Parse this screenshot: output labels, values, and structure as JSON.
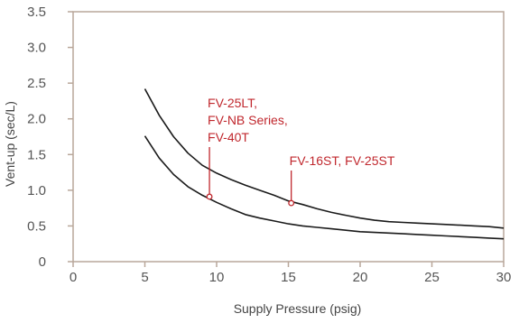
{
  "chart_data": {
    "type": "line",
    "xlabel": "Supply Pressure (psig)",
    "ylabel": "Vent-up (sec/L)",
    "xlim": [
      0,
      30
    ],
    "ylim": [
      0,
      3.5
    ],
    "xticks": [
      "0",
      "5",
      "10",
      "15",
      "20",
      "25",
      "30"
    ],
    "yticks": [
      "0",
      "0.5",
      "1.0",
      "1.5",
      "2.0",
      "2.5",
      "3.0",
      "3.5"
    ],
    "grid": false,
    "series": [
      {
        "x": [
          5,
          6,
          7,
          8,
          9,
          10,
          11,
          12,
          13,
          14,
          15,
          16,
          17,
          18,
          19,
          20,
          21,
          22,
          23,
          24,
          25,
          26,
          27,
          28,
          29,
          30
        ],
        "y": [
          2.42,
          2.05,
          1.75,
          1.52,
          1.35,
          1.24,
          1.15,
          1.07,
          1.0,
          0.93,
          0.85,
          0.8,
          0.74,
          0.69,
          0.65,
          0.61,
          0.58,
          0.56,
          0.55,
          0.54,
          0.53,
          0.52,
          0.51,
          0.5,
          0.49,
          0.47
        ]
      },
      {
        "x": [
          5,
          6,
          7,
          8,
          9,
          10,
          11,
          12,
          13,
          14,
          15,
          16,
          17,
          18,
          19,
          20,
          21,
          22,
          23,
          24,
          25,
          26,
          27,
          28,
          29,
          30
        ],
        "y": [
          1.76,
          1.45,
          1.22,
          1.05,
          0.93,
          0.83,
          0.74,
          0.66,
          0.61,
          0.57,
          0.53,
          0.5,
          0.48,
          0.46,
          0.44,
          0.42,
          0.41,
          0.4,
          0.39,
          0.38,
          0.37,
          0.36,
          0.35,
          0.34,
          0.33,
          0.32
        ]
      }
    ],
    "annotations": [
      {
        "lines": [
          "FV-25LT,",
          "FV-NB Series,",
          "FV-40T"
        ],
        "x": 9.5,
        "y": 0.91
      },
      {
        "lines": [
          "FV-16ST, FV-25ST"
        ],
        "x": 15.2,
        "y": 0.82
      }
    ]
  },
  "colors": {
    "axis": "#b9a79a",
    "line": "#1a1a1a",
    "annotation": "#c0272d"
  }
}
